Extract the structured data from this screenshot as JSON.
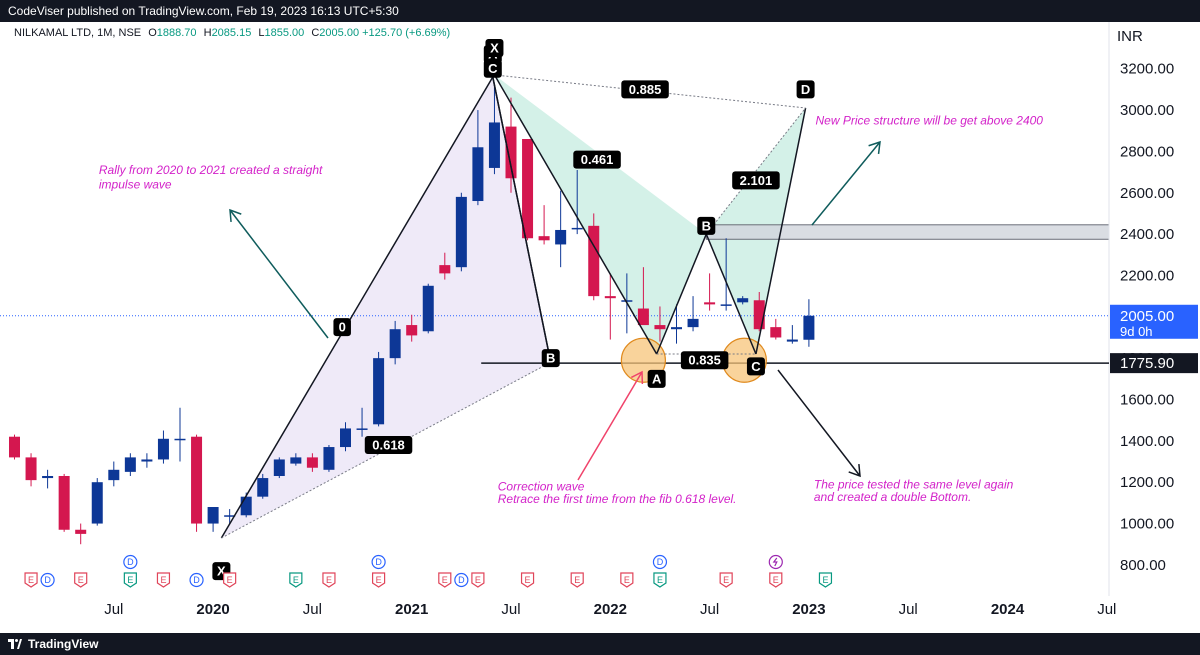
{
  "header": {
    "publisher": "CodeViser published on TradingView.com, Feb 19, 2023 16:13 UTC+5:30"
  },
  "legend": {
    "symbol": "NILKAMAL LTD, 1M, NSE",
    "open_label": "O",
    "open": "1888.70",
    "high_label": "H",
    "high": "2085.15",
    "low_label": "L",
    "low": "1855.00",
    "close_label": "C",
    "close": "2005.00",
    "change": "+125.70 (+6.69%)"
  },
  "currency": "INR",
  "footer": {
    "brand": "TradingView"
  },
  "colors": {
    "up": "#0d3796",
    "down": "#d4174f",
    "annotation": "#d322c9",
    "arrow": "#0f5c5c",
    "shade_purple": "#e5dcf3",
    "shade_green": "#b7e8d8",
    "level_line": "#131722",
    "price_line": "#2962ff"
  },
  "chart_data": {
    "type": "candlestick",
    "y_axis": {
      "min": 700,
      "max": 3400,
      "ticks": [
        "3200.00",
        "3000.00",
        "2800.00",
        "2600.00",
        "2400.00",
        "2200.00",
        "2000.00",
        "1800.00",
        "1600.00",
        "1400.00",
        "1200.00",
        "1000.00",
        "800.00"
      ],
      "tick_values": [
        3200,
        3000,
        2800,
        2600,
        2400,
        2200,
        2000,
        1800,
        1600,
        1400,
        1200,
        1000,
        800
      ]
    },
    "x_axis": {
      "labels": [
        {
          "text": "Jul",
          "month": 6,
          "bold": false
        },
        {
          "text": "2020",
          "month": 12,
          "bold": true
        },
        {
          "text": "Jul",
          "month": 18,
          "bold": false
        },
        {
          "text": "2021",
          "month": 24,
          "bold": true
        },
        {
          "text": "Jul",
          "month": 30,
          "bold": false
        },
        {
          "text": "2022",
          "month": 36,
          "bold": true
        },
        {
          "text": "Jul",
          "month": 42,
          "bold": false
        },
        {
          "text": "2023",
          "month": 48,
          "bold": true
        },
        {
          "text": "Jul",
          "month": 54,
          "bold": false
        },
        {
          "text": "2024",
          "month": 60,
          "bold": true
        },
        {
          "text": "Jul",
          "month": 66,
          "bold": false
        }
      ]
    },
    "candles": [
      {
        "m": 0,
        "o": 1420,
        "h": 1430,
        "l": 1310,
        "c": 1320
      },
      {
        "m": 1,
        "o": 1320,
        "h": 1340,
        "l": 1180,
        "c": 1210
      },
      {
        "m": 2,
        "o": 1220,
        "h": 1260,
        "l": 1170,
        "c": 1230
      },
      {
        "m": 3,
        "o": 1230,
        "h": 1240,
        "l": 960,
        "c": 970
      },
      {
        "m": 4,
        "o": 970,
        "h": 1000,
        "l": 900,
        "c": 950
      },
      {
        "m": 5,
        "o": 1000,
        "h": 1220,
        "l": 990,
        "c": 1200
      },
      {
        "m": 6,
        "o": 1210,
        "h": 1300,
        "l": 1180,
        "c": 1260
      },
      {
        "m": 7,
        "o": 1250,
        "h": 1340,
        "l": 1230,
        "c": 1320
      },
      {
        "m": 8,
        "o": 1300,
        "h": 1340,
        "l": 1270,
        "c": 1310
      },
      {
        "m": 9,
        "o": 1310,
        "h": 1450,
        "l": 1290,
        "c": 1410
      },
      {
        "m": 10,
        "o": 1410,
        "h": 1560,
        "l": 1300,
        "c": 1410
      },
      {
        "m": 11,
        "o": 1420,
        "h": 1430,
        "l": 960,
        "c": 1000
      },
      {
        "m": 12,
        "o": 1000,
        "h": 1080,
        "l": 960,
        "c": 1080
      },
      {
        "m": 13,
        "o": 1040,
        "h": 1070,
        "l": 1000,
        "c": 1040
      },
      {
        "m": 14,
        "o": 1040,
        "h": 1150,
        "l": 1030,
        "c": 1130
      },
      {
        "m": 15,
        "o": 1130,
        "h": 1240,
        "l": 1120,
        "c": 1220
      },
      {
        "m": 16,
        "o": 1230,
        "h": 1320,
        "l": 1220,
        "c": 1310
      },
      {
        "m": 17,
        "o": 1290,
        "h": 1340,
        "l": 1280,
        "c": 1320
      },
      {
        "m": 18,
        "o": 1320,
        "h": 1340,
        "l": 1250,
        "c": 1270
      },
      {
        "m": 19,
        "o": 1260,
        "h": 1380,
        "l": 1250,
        "c": 1370
      },
      {
        "m": 20,
        "o": 1370,
        "h": 1490,
        "l": 1350,
        "c": 1460
      },
      {
        "m": 21,
        "o": 1460,
        "h": 1560,
        "l": 1420,
        "c": 1460
      },
      {
        "m": 22,
        "o": 1480,
        "h": 1830,
        "l": 1470,
        "c": 1800
      },
      {
        "m": 23,
        "o": 1800,
        "h": 1980,
        "l": 1770,
        "c": 1940
      },
      {
        "m": 24,
        "o": 1960,
        "h": 2010,
        "l": 1880,
        "c": 1910
      },
      {
        "m": 25,
        "o": 1930,
        "h": 2160,
        "l": 1920,
        "c": 2150
      },
      {
        "m": 26,
        "o": 2250,
        "h": 2310,
        "l": 2180,
        "c": 2210
      },
      {
        "m": 27,
        "o": 2240,
        "h": 2600,
        "l": 2220,
        "c": 2580
      },
      {
        "m": 28,
        "o": 2560,
        "h": 3000,
        "l": 2540,
        "c": 2820
      },
      {
        "m": 29,
        "o": 2720,
        "h": 3120,
        "l": 2690,
        "c": 2940
      },
      {
        "m": 30,
        "o": 2920,
        "h": 3060,
        "l": 2600,
        "c": 2670
      },
      {
        "m": 31,
        "o": 2860,
        "h": 2860,
        "l": 2370,
        "c": 2380
      },
      {
        "m": 32,
        "o": 2390,
        "h": 2540,
        "l": 2350,
        "c": 2370
      },
      {
        "m": 33,
        "o": 2350,
        "h": 2610,
        "l": 2240,
        "c": 2420
      },
      {
        "m": 34,
        "o": 2430,
        "h": 2710,
        "l": 2400,
        "c": 2430
      },
      {
        "m": 35,
        "o": 2440,
        "h": 2500,
        "l": 2080,
        "c": 2100
      },
      {
        "m": 36,
        "o": 2100,
        "h": 2210,
        "l": 1890,
        "c": 2090
      },
      {
        "m": 37,
        "o": 2080,
        "h": 2210,
        "l": 1920,
        "c": 2080
      },
      {
        "m": 38,
        "o": 2040,
        "h": 2240,
        "l": 1970,
        "c": 1960
      },
      {
        "m": 39,
        "o": 1960,
        "h": 2050,
        "l": 1880,
        "c": 1940
      },
      {
        "m": 40,
        "o": 1940,
        "h": 2060,
        "l": 1870,
        "c": 1950
      },
      {
        "m": 41,
        "o": 1950,
        "h": 2100,
        "l": 1930,
        "c": 1990
      },
      {
        "m": 42,
        "o": 2070,
        "h": 2210,
        "l": 2030,
        "c": 2060
      },
      {
        "m": 43,
        "o": 2060,
        "h": 2380,
        "l": 2030,
        "c": 2060
      },
      {
        "m": 44,
        "o": 2070,
        "h": 2100,
        "l": 2060,
        "c": 2090
      },
      {
        "m": 45,
        "o": 2080,
        "h": 2120,
        "l": 1930,
        "c": 1940
      },
      {
        "m": 46,
        "o": 1950,
        "h": 1990,
        "l": 1890,
        "c": 1900
      },
      {
        "m": 47,
        "o": 1880,
        "h": 1960,
        "l": 1870,
        "c": 1890
      },
      {
        "m": 48,
        "o": 1889,
        "h": 2085,
        "l": 1855,
        "c": 2005
      }
    ],
    "current_price": {
      "value": "2005.00",
      "countdown": "9d 0h",
      "numeric": 2005
    },
    "support_level": {
      "value": "1775.90",
      "numeric": 1775.9
    },
    "resistance_zone": {
      "low": 2375,
      "high": 2445
    },
    "pattern_1": {
      "points": [
        {
          "label": "X",
          "m": 12.5,
          "v": 930
        },
        {
          "label": "A",
          "m": 28.9,
          "v": 3160
        },
        {
          "label": "B",
          "m": 32.4,
          "v": 1780
        },
        {
          "label": "C",
          "m": 28.9,
          "v": 3160
        }
      ],
      "ratios": [
        {
          "text": "0",
          "m": 19.8,
          "v": 1950
        },
        {
          "text": "0.618",
          "m": 22.6,
          "v": 1380
        }
      ]
    },
    "pattern_2": {
      "points": [
        {
          "label": "X",
          "m": 29,
          "v": 3170
        },
        {
          "label": "A",
          "m": 38.8,
          "v": 1820
        },
        {
          "label": "B",
          "m": 41.8,
          "v": 2400
        },
        {
          "label": "C",
          "m": 44.8,
          "v": 1820
        },
        {
          "label": "D",
          "m": 47.8,
          "v": 3010
        }
      ],
      "ratios": [
        {
          "text": "0.885",
          "m": 38.1,
          "v": 3100
        },
        {
          "text": "0.461",
          "m": 35.2,
          "v": 2760
        },
        {
          "text": "2.101",
          "m": 44.8,
          "v": 2660
        },
        {
          "text": "0.835",
          "m": 41.7,
          "v": 1790
        }
      ]
    },
    "annotations": [
      {
        "text": "Rally from 2020 to 2021 created a straight",
        "m": 5,
        "v": 2670
      },
      {
        "text": "impulse wave",
        "m": 5,
        "v": 2600
      },
      {
        "text": "New Price structure will be get above 2400",
        "m": 49,
        "v": 2920
      },
      {
        "text": "Correction wave",
        "m": 30,
        "v": 1160
      },
      {
        "text": "Retrace the first time from the fib 0.618 level.",
        "m": 30,
        "v": 1100
      },
      {
        "text": "The price tested the same level again",
        "m": 49,
        "v": 1170
      },
      {
        "text": "and created a double Bottom.",
        "m": 49,
        "v": 1110
      }
    ],
    "event_markers": [
      {
        "m": 1,
        "type": "E"
      },
      {
        "m": 2,
        "type": "D"
      },
      {
        "m": 4,
        "type": "E"
      },
      {
        "m": 7,
        "type": "E"
      },
      {
        "m": 7,
        "type": "D",
        "row": "upper"
      },
      {
        "m": 9,
        "type": "E"
      },
      {
        "m": 11,
        "type": "D"
      },
      {
        "m": 13,
        "type": "E"
      },
      {
        "m": 17,
        "type": "E"
      },
      {
        "m": 19,
        "type": "E"
      },
      {
        "m": 22,
        "type": "E"
      },
      {
        "m": 22,
        "type": "D",
        "row": "upper"
      },
      {
        "m": 26,
        "type": "E"
      },
      {
        "m": 27,
        "type": "D"
      },
      {
        "m": 28,
        "type": "E"
      },
      {
        "m": 31,
        "type": "E"
      },
      {
        "m": 34,
        "type": "E"
      },
      {
        "m": 37,
        "type": "E"
      },
      {
        "m": 39,
        "type": "E"
      },
      {
        "m": 39,
        "type": "D",
        "row": "upper"
      },
      {
        "m": 43,
        "type": "E"
      },
      {
        "m": 46,
        "type": "E"
      },
      {
        "m": 46,
        "type": "S",
        "row": "upper"
      },
      {
        "m": 49,
        "type": "E"
      }
    ]
  }
}
